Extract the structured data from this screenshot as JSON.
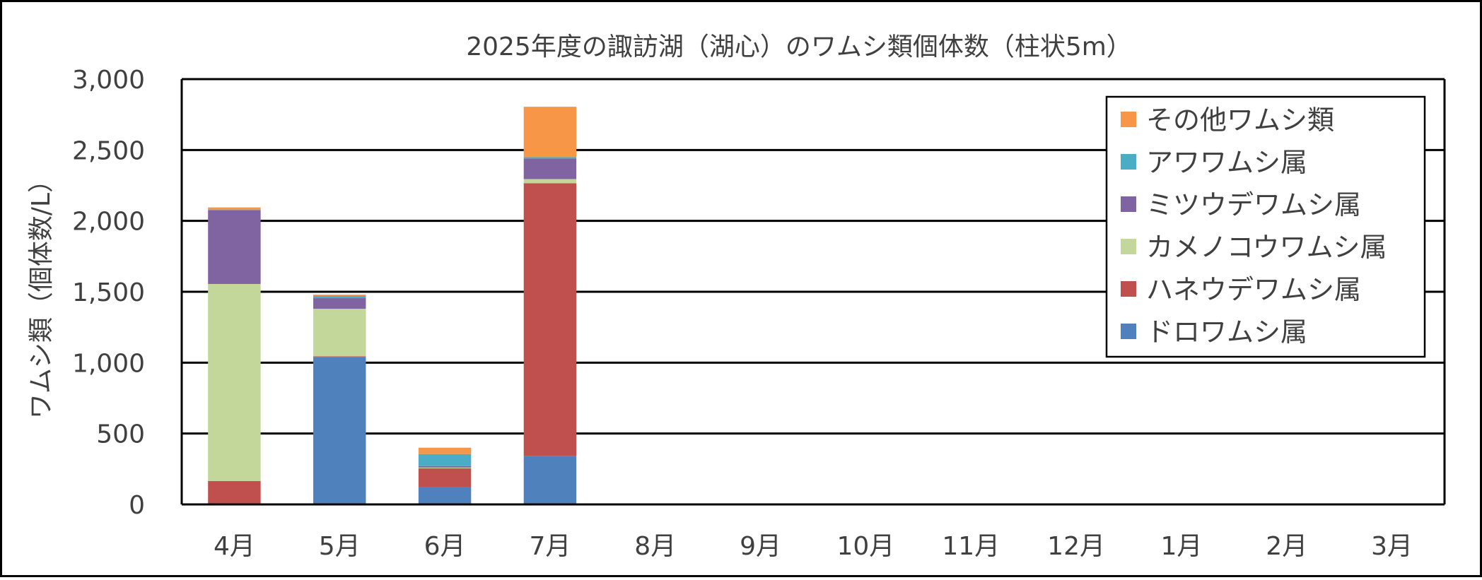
{
  "chart_data": {
    "type": "bar",
    "stacked": true,
    "title": "2025年度の諏訪湖（湖心）のワムシ類個体数（柱状5m）",
    "xlabel": "",
    "ylabel": "ワムシ類（個体数/L）",
    "ylim": [
      0,
      3000
    ],
    "yticks": [
      0,
      500,
      1000,
      1500,
      2000,
      2500,
      3000
    ],
    "ytick_labels": [
      "0",
      "500",
      "1,000",
      "1,500",
      "2,000",
      "2,500",
      "3,000"
    ],
    "grid": true,
    "legend_position": "top-right",
    "categories": [
      "4月",
      "5月",
      "6月",
      "7月",
      "8月",
      "9月",
      "10月",
      "11月",
      "12月",
      "1月",
      "2月",
      "3月"
    ],
    "series": [
      {
        "name": "ドロワムシ属",
        "color": "#4f81bd",
        "values": [
          0,
          1040,
          120,
          340,
          null,
          null,
          null,
          null,
          null,
          null,
          null,
          null
        ]
      },
      {
        "name": "ハネウデワムシ属",
        "color": "#c0504d",
        "values": [
          165,
          5,
          135,
          1925,
          null,
          null,
          null,
          null,
          null,
          null,
          null,
          null
        ]
      },
      {
        "name": "カメノコウワムシ属",
        "color": "#c4d79b",
        "values": [
          1390,
          335,
          5,
          30,
          null,
          null,
          null,
          null,
          null,
          null,
          null,
          null
        ]
      },
      {
        "name": "ミツウデワムシ属",
        "color": "#8064a2",
        "values": [
          520,
          75,
          10,
          145,
          null,
          null,
          null,
          null,
          null,
          null,
          null,
          null
        ]
      },
      {
        "name": "アワワムシ属",
        "color": "#4bacc6",
        "values": [
          5,
          15,
          85,
          10,
          null,
          null,
          null,
          null,
          null,
          null,
          null,
          null
        ]
      },
      {
        "name": "その他ワムシ類",
        "color": "#f79646",
        "values": [
          15,
          10,
          45,
          355,
          null,
          null,
          null,
          null,
          null,
          null,
          null,
          null
        ]
      }
    ]
  }
}
